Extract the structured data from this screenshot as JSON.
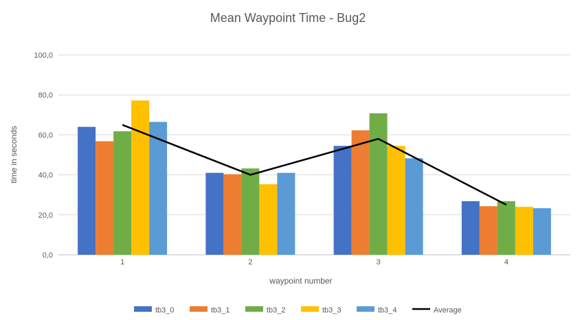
{
  "chart_data": {
    "type": "bar",
    "title": "Mean Waypoint Time - Bug2",
    "xlabel": "waypoint number",
    "ylabel": "time in seconds",
    "categories": [
      "1",
      "2",
      "3",
      "4"
    ],
    "ylim": [
      0,
      100
    ],
    "yticks": [
      "0,0",
      "20,0",
      "40,0",
      "60,0",
      "80,0",
      "100,0"
    ],
    "grid": true,
    "legend_position": "bottom",
    "series": [
      {
        "name": "tb3_0",
        "color": "#4472C4",
        "values": [
          64.0,
          41.0,
          54.5,
          26.8
        ]
      },
      {
        "name": "tb3_1",
        "color": "#ED7D31",
        "values": [
          56.8,
          40.3,
          62.3,
          24.3
        ]
      },
      {
        "name": "tb3_2",
        "color": "#70AD47",
        "values": [
          61.8,
          43.2,
          70.8,
          26.8
        ]
      },
      {
        "name": "tb3_3",
        "color": "#FFC000",
        "values": [
          77.2,
          35.3,
          54.5,
          24.0
        ]
      },
      {
        "name": "tb3_4",
        "color": "#5B9BD5",
        "values": [
          66.5,
          41.0,
          48.3,
          23.3
        ]
      }
    ],
    "line_series": {
      "name": "Average",
      "color": "#000000",
      "values": [
        65.0,
        40.0,
        58.0,
        25.0
      ]
    }
  }
}
